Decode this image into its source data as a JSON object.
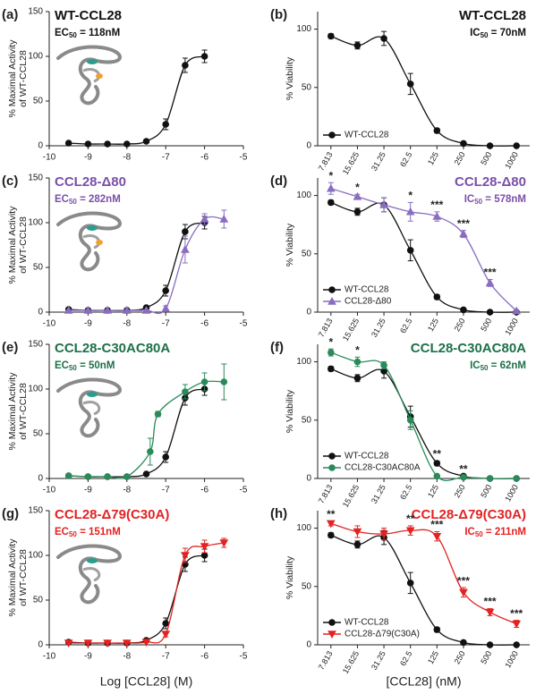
{
  "chart_data": [
    {
      "type": "line",
      "letter": "(a)",
      "title": "WT-CCL28",
      "title_color": "#111111",
      "annotation": {
        "prefix": "EC",
        "sub": "50",
        "rest": " = 118nM"
      },
      "ylabel": [
        "% Maximal Activity",
        "of WT-CCL28"
      ],
      "xlim": [
        -10,
        -5
      ],
      "xticks": [
        -10,
        -9,
        -8,
        -7,
        -6,
        -5
      ],
      "ylim": [
        0,
        150
      ],
      "yticks": [
        0,
        50,
        100,
        150
      ],
      "series": [
        {
          "name": "WT-CCL28",
          "color": "#111111",
          "marker": "circle",
          "x": [
            -9.5,
            -9,
            -8.5,
            -8,
            -7.5,
            -7,
            -6.5,
            -6
          ],
          "values": [
            3,
            2,
            2,
            2,
            5,
            24,
            90,
            100
          ],
          "errors": [
            0,
            0,
            0,
            0,
            1,
            6,
            8,
            7
          ]
        }
      ]
    },
    {
      "type": "line",
      "letter": "(b)",
      "title": "WT-CCL28",
      "title_color": "#111111",
      "annotation": {
        "prefix": "IC",
        "sub": "50",
        "rest": " = 70nM"
      },
      "ylabel": [
        "% Viability"
      ],
      "categories": [
        "7.813",
        "15.625",
        "31.25",
        "62.5",
        "125",
        "250",
        "500",
        "1000"
      ],
      "ylim": [
        0,
        115
      ],
      "yticks": [
        0,
        50,
        100
      ],
      "series": [
        {
          "name": "WT-CCL28",
          "color": "#111111",
          "marker": "circle",
          "values": [
            94,
            86,
            92,
            53,
            13,
            2,
            0,
            0
          ],
          "errors": [
            2,
            3,
            6,
            9,
            2,
            0,
            0,
            0
          ]
        }
      ]
    },
    {
      "type": "line",
      "letter": "(c)",
      "title": "CCL28-Δ80",
      "title_color": "#7b4fa8",
      "annotation": {
        "prefix": "EC",
        "sub": "50",
        "rest": " = 282nM"
      },
      "ylabel": [
        "% Maximal Activity",
        "of WT-CCL28"
      ],
      "xlim": [
        -10,
        -5
      ],
      "xticks": [
        -10,
        -9,
        -8,
        -7,
        -6,
        -5
      ],
      "ylim": [
        0,
        150
      ],
      "yticks": [
        0,
        50,
        100,
        150
      ],
      "series": [
        {
          "name": "WT-CCL28",
          "color": "#111111",
          "marker": "circle",
          "x": [
            -9.5,
            -9,
            -8.5,
            -8,
            -7.5,
            -7,
            -6.5,
            -6
          ],
          "values": [
            3,
            2,
            2,
            2,
            5,
            24,
            90,
            100
          ],
          "errors": [
            0,
            0,
            0,
            0,
            1,
            6,
            8,
            7
          ]
        },
        {
          "name": "CCL28-Δ80",
          "color": "#8a6cc0",
          "marker": "triangle",
          "x": [
            -9.5,
            -9,
            -8.5,
            -8,
            -7.5,
            -7,
            -6.5,
            -6,
            -5.5
          ],
          "values": [
            2,
            2,
            2,
            2,
            2,
            4,
            70,
            104,
            104
          ],
          "errors": [
            0,
            0,
            0,
            0,
            0,
            3,
            15,
            6,
            10
          ]
        }
      ]
    },
    {
      "type": "line",
      "letter": "(d)",
      "title": "CCL28-Δ80",
      "title_color": "#7b4fa8",
      "annotation": {
        "prefix": "IC",
        "sub": "50",
        "rest": " = 578nM"
      },
      "ylabel": [
        "% Viability"
      ],
      "categories": [
        "7.813",
        "15.625",
        "31.25",
        "62.5",
        "125",
        "250",
        "500",
        "1000"
      ],
      "ylim": [
        0,
        115
      ],
      "yticks": [
        0,
        50,
        100
      ],
      "series": [
        {
          "name": "WT-CCL28",
          "color": "#111111",
          "marker": "circle",
          "values": [
            94,
            86,
            92,
            53,
            13,
            2,
            0,
            0
          ],
          "errors": [
            2,
            3,
            6,
            9,
            2,
            0,
            0,
            0
          ]
        },
        {
          "name": "CCL28-Δ80",
          "color": "#8a6cc0",
          "marker": "triangle",
          "values": [
            106,
            99,
            92,
            86,
            82,
            67,
            25,
            1
          ],
          "errors": [
            5,
            2,
            6,
            8,
            4,
            3,
            3,
            0
          ],
          "stars": [
            "*",
            "*",
            null,
            "*",
            "***",
            "***",
            "***",
            null
          ]
        }
      ]
    },
    {
      "type": "line",
      "letter": "(e)",
      "title": "CCL28-C30AC80A",
      "title_color": "#1d7048",
      "annotation": {
        "prefix": "EC",
        "sub": "50",
        "rest": " = 50nM"
      },
      "ylabel": [
        "% Maximal Activity",
        "of WT-CCL28"
      ],
      "xlim": [
        -10,
        -5
      ],
      "xticks": [
        -10,
        -9,
        -8,
        -7,
        -6,
        -5
      ],
      "ylim": [
        0,
        150
      ],
      "yticks": [
        0,
        50,
        100,
        150
      ],
      "series": [
        {
          "name": "WT-CCL28",
          "color": "#111111",
          "marker": "circle",
          "x": [
            -9.5,
            -9,
            -8.5,
            -8,
            -7.5,
            -7,
            -6.5,
            -6
          ],
          "values": [
            3,
            2,
            2,
            2,
            5,
            24,
            90,
            100
          ],
          "errors": [
            0,
            0,
            0,
            0,
            1,
            6,
            8,
            7
          ]
        },
        {
          "name": "CCL28-C30AC80A",
          "color": "#2a8a5a",
          "marker": "circle",
          "x": [
            -9.5,
            -9,
            -8.5,
            -8,
            -7.4,
            -7.2,
            -6.5,
            -6,
            -5.5
          ],
          "values": [
            3,
            2,
            2,
            2,
            30,
            72,
            97,
            108,
            108
          ],
          "errors": [
            0,
            0,
            0,
            0,
            15,
            3,
            8,
            10,
            20
          ]
        }
      ]
    },
    {
      "type": "line",
      "letter": "(f)",
      "title": "CCL28-C30AC80A",
      "title_color": "#1d7048",
      "annotation": {
        "prefix": "IC",
        "sub": "50",
        "rest": " = 62nM"
      },
      "ylabel": [
        "% Viability"
      ],
      "categories": [
        "7.813",
        "15.625",
        "31.25",
        "62.5",
        "125",
        "250",
        "500",
        "1000"
      ],
      "ylim": [
        0,
        115
      ],
      "yticks": [
        0,
        50,
        100
      ],
      "series": [
        {
          "name": "WT-CCL28",
          "color": "#111111",
          "marker": "circle",
          "values": [
            94,
            86,
            92,
            53,
            13,
            2,
            0,
            0
          ],
          "errors": [
            2,
            3,
            6,
            9,
            2,
            0,
            0,
            0
          ],
          "stars": [
            null,
            null,
            null,
            null,
            "**",
            "**",
            null,
            null
          ]
        },
        {
          "name": "CCL28-C30AC80A",
          "color": "#2a8a5a",
          "marker": "circle",
          "values": [
            108,
            100,
            97,
            50,
            2,
            1,
            0,
            0
          ],
          "errors": [
            3,
            4,
            3,
            8,
            1,
            0,
            0,
            0
          ],
          "stars": [
            "*",
            "*",
            null,
            null,
            null,
            null,
            null,
            null
          ]
        }
      ]
    },
    {
      "type": "line",
      "letter": "(g)",
      "title": "CCL28-Δ79(C30A)",
      "title_color": "#e32222",
      "annotation": {
        "prefix": "EC",
        "sub": "50",
        "rest": " = 151nM"
      },
      "ylabel": [
        "% Maximal Activity",
        "of WT-CCL28"
      ],
      "xlabel": "Log [CCL28] (M)",
      "xlim": [
        -10,
        -5
      ],
      "xticks": [
        -10,
        -9,
        -8,
        -7,
        -6,
        -5
      ],
      "ylim": [
        0,
        150
      ],
      "yticks": [
        0,
        50,
        100,
        150
      ],
      "series": [
        {
          "name": "WT-CCL28",
          "color": "#111111",
          "marker": "circle",
          "x": [
            -9.5,
            -9,
            -8.5,
            -8,
            -7.5,
            -7,
            -6.5,
            -6
          ],
          "values": [
            3,
            2,
            2,
            2,
            5,
            24,
            90,
            100
          ],
          "errors": [
            0,
            0,
            0,
            0,
            1,
            6,
            8,
            7
          ]
        },
        {
          "name": "CCL28-Δ79(C30A)",
          "color": "#e32222",
          "marker": "triangle-down",
          "x": [
            -9.5,
            -9,
            -8.5,
            -8,
            -7.5,
            -7,
            -6.5,
            -6,
            -5.5
          ],
          "values": [
            2,
            2,
            2,
            2,
            3,
            12,
            100,
            110,
            114
          ],
          "errors": [
            0,
            0,
            0,
            0,
            0,
            3,
            8,
            7,
            5
          ]
        }
      ]
    },
    {
      "type": "line",
      "letter": "(h)",
      "title": "CCL28-Δ79(C30A)",
      "title_color": "#e32222",
      "annotation": {
        "prefix": "IC",
        "sub": "50",
        "rest": " = 211nM"
      },
      "ylabel": [
        "% Viability"
      ],
      "xlabel": "[CCL28] (nM)",
      "categories": [
        "7.813",
        "15.625",
        "31.25",
        "62.5",
        "125",
        "250",
        "500",
        "1000"
      ],
      "ylim": [
        0,
        115
      ],
      "yticks": [
        0,
        50,
        100
      ],
      "series": [
        {
          "name": "WT-CCL28",
          "color": "#111111",
          "marker": "circle",
          "values": [
            94,
            86,
            92,
            53,
            13,
            2,
            0,
            0
          ],
          "errors": [
            2,
            3,
            6,
            9,
            2,
            0,
            0,
            0
          ]
        },
        {
          "name": "CCL28-Δ79(C30A)",
          "color": "#e32222",
          "marker": "triangle-down",
          "values": [
            104,
            97,
            95,
            98,
            93,
            45,
            28,
            18
          ],
          "errors": [
            2,
            5,
            5,
            4,
            4,
            4,
            3,
            3
          ],
          "stars": [
            "**",
            null,
            null,
            "**",
            "***",
            "***",
            "***",
            "***"
          ]
        }
      ]
    }
  ]
}
